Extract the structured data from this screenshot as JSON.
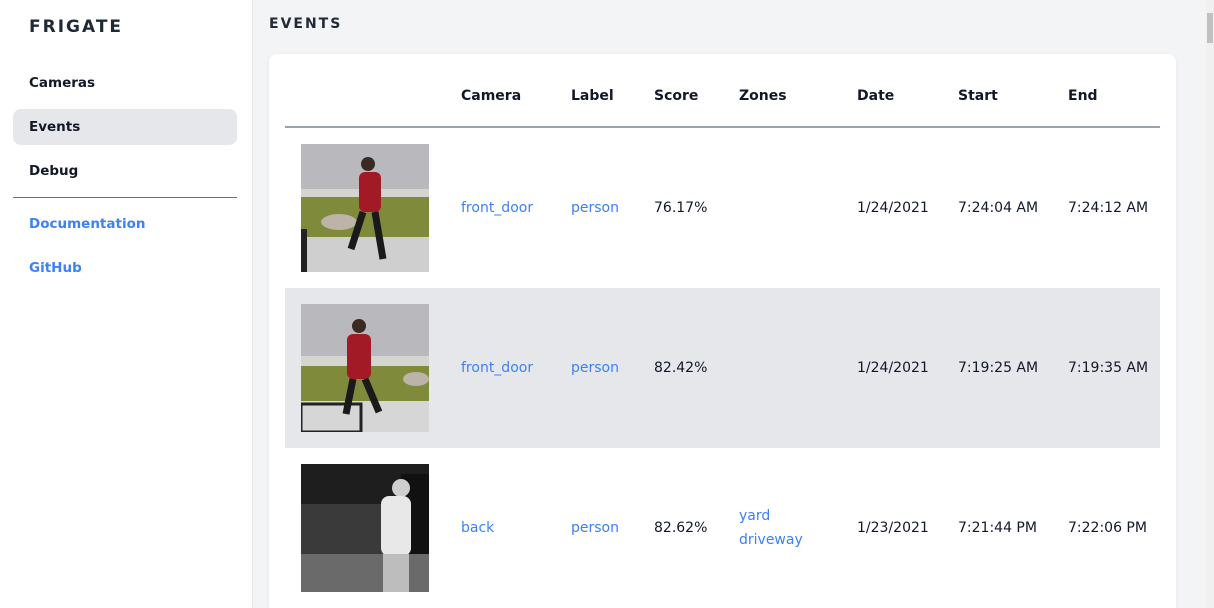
{
  "sidebar": {
    "brand": "FRIGATE",
    "items": [
      {
        "label": "Cameras",
        "active": false
      },
      {
        "label": "Events",
        "active": true
      },
      {
        "label": "Debug",
        "active": false
      }
    ],
    "links": [
      {
        "label": "Documentation"
      },
      {
        "label": "GitHub"
      }
    ]
  },
  "page": {
    "title": "EVENTS"
  },
  "table": {
    "headers": [
      "Camera",
      "Label",
      "Score",
      "Zones",
      "Date",
      "Start",
      "End"
    ],
    "rows": [
      {
        "camera": "front_door",
        "label": "person",
        "score": "76.17%",
        "zones": [],
        "date": "1/24/2021",
        "start": "7:24:04 AM",
        "end": "7:24:12 AM"
      },
      {
        "camera": "front_door",
        "label": "person",
        "score": "82.42%",
        "zones": [],
        "date": "1/24/2021",
        "start": "7:19:25 AM",
        "end": "7:19:35 AM"
      },
      {
        "camera": "back",
        "label": "person",
        "score": "82.62%",
        "zones": [
          "yard",
          "driveway"
        ],
        "date": "1/23/2021",
        "start": "7:21:44 PM",
        "end": "7:22:06 PM"
      }
    ]
  },
  "colors": {
    "accent": "#3b82f6",
    "active_bg": "#e5e7eb",
    "page_bg": "#f3f4f6"
  }
}
